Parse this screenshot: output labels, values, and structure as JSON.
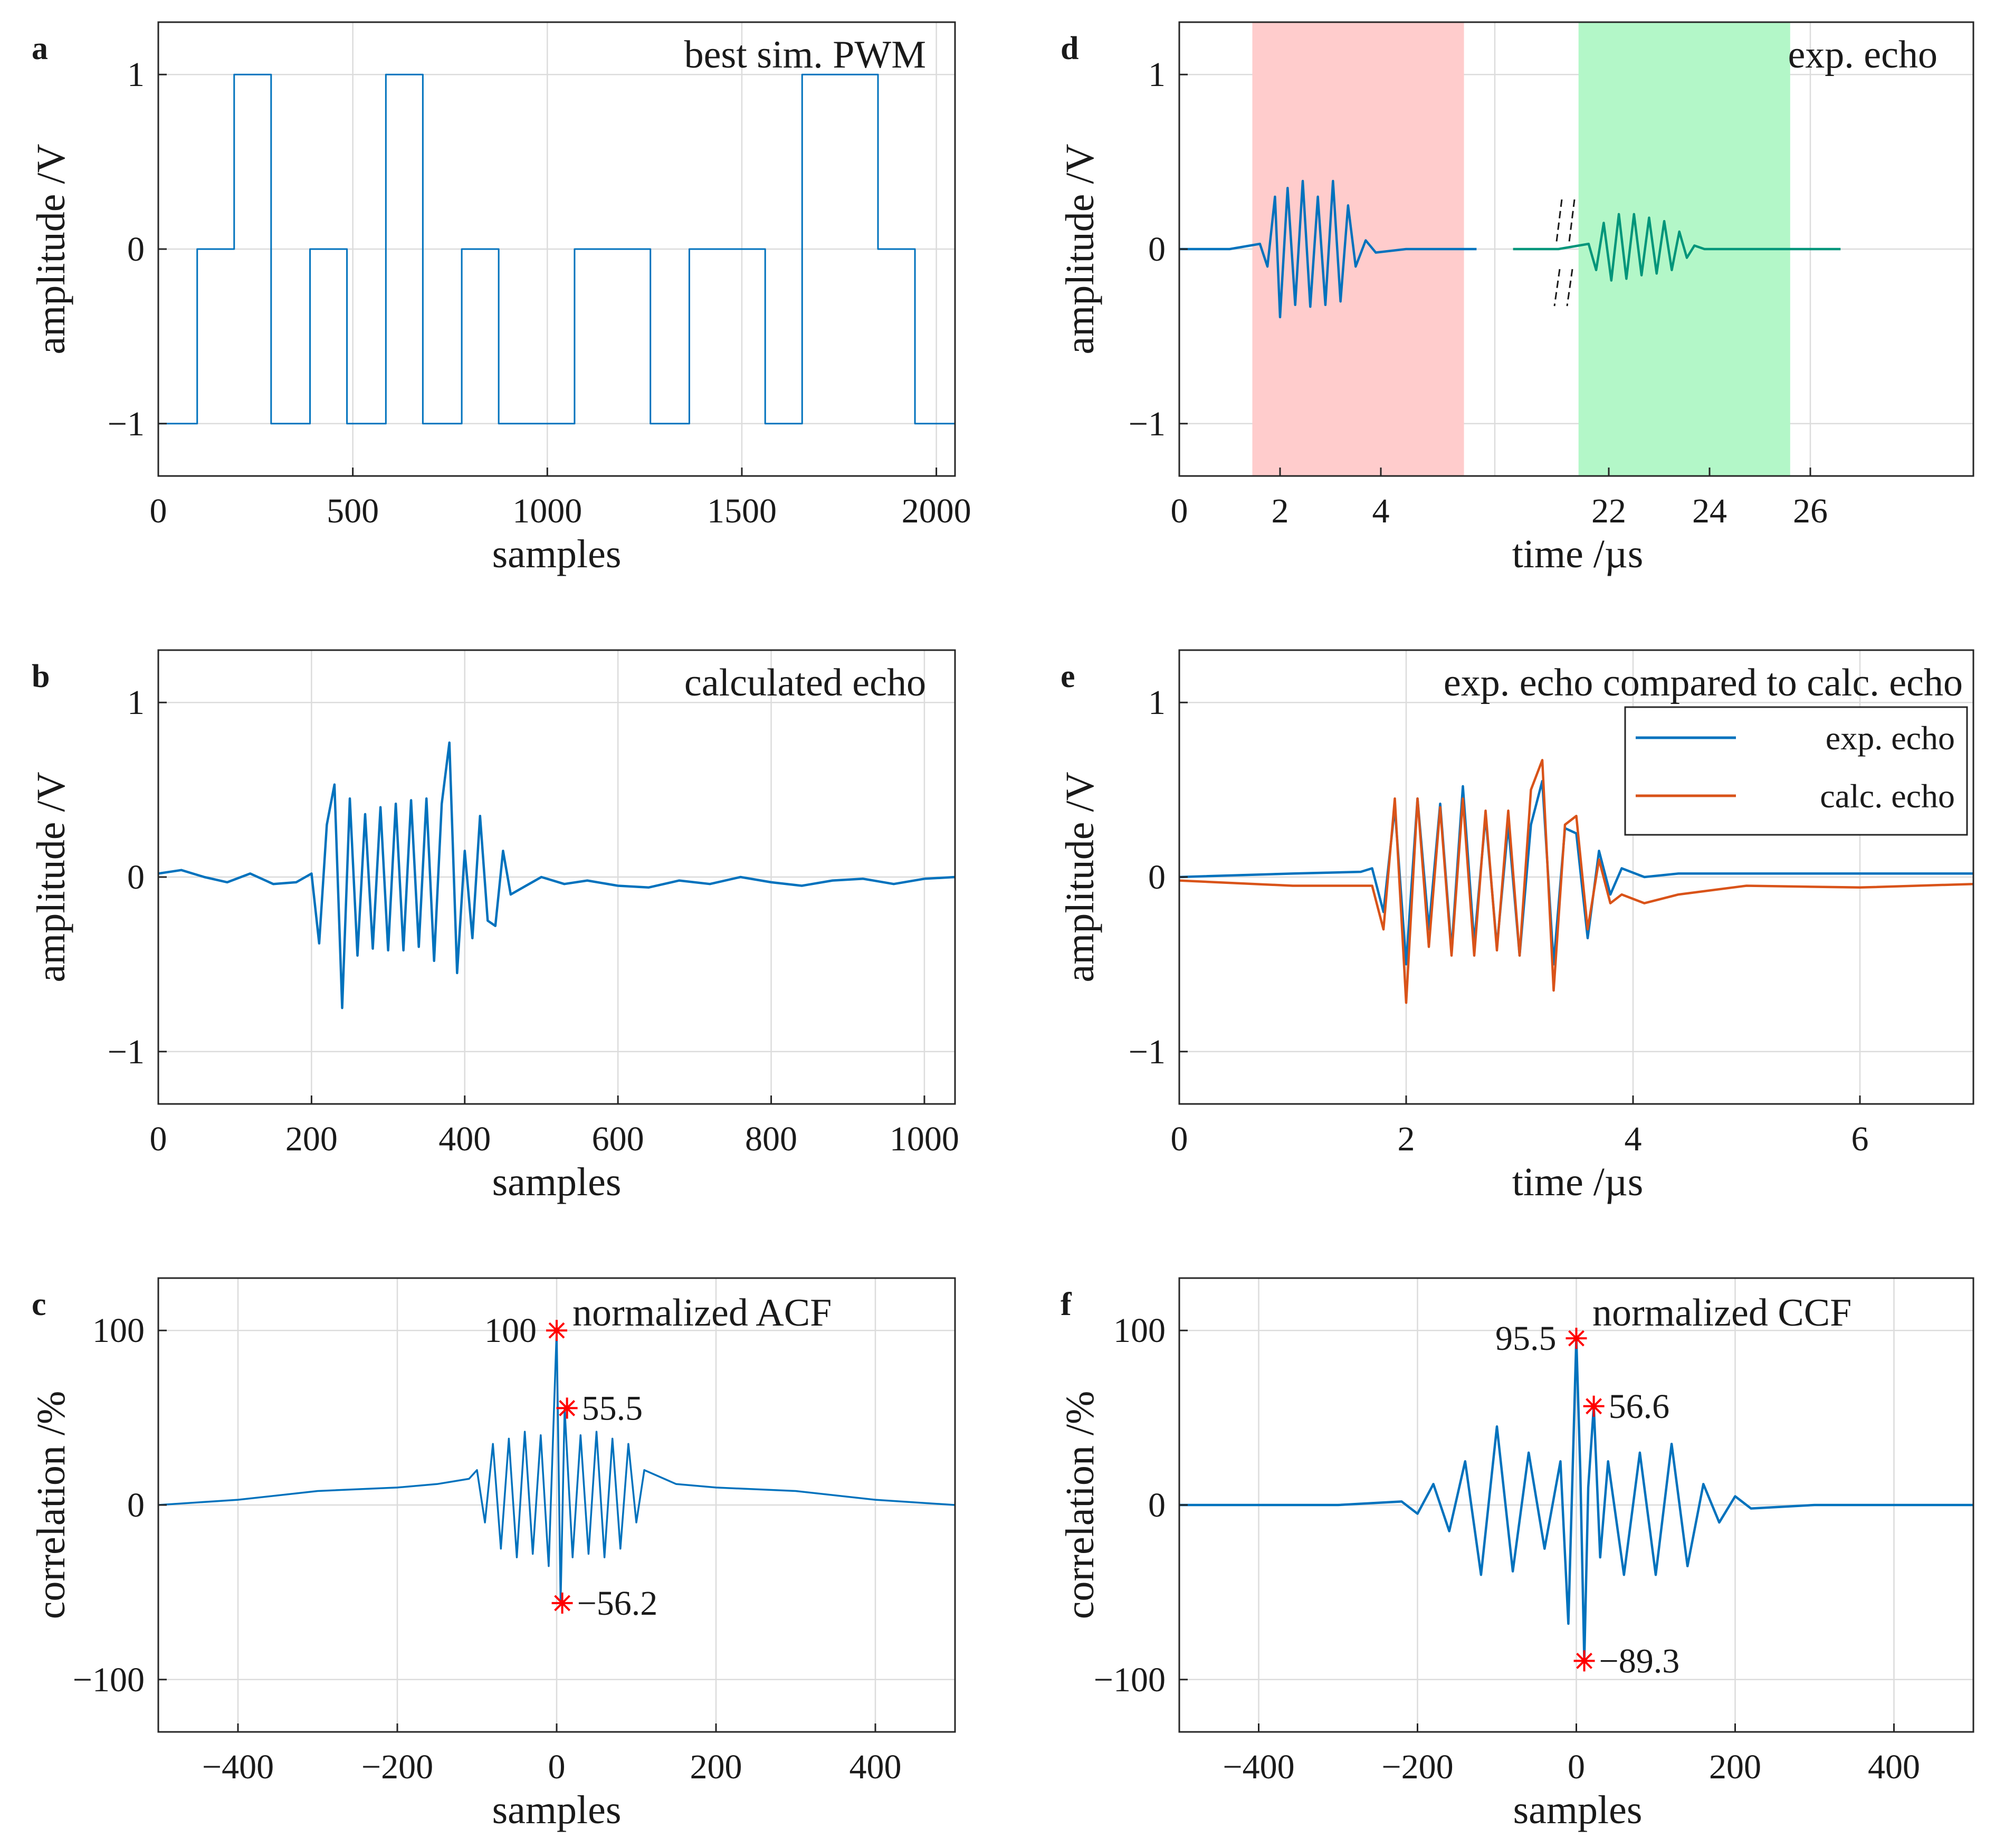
{
  "colors": {
    "blue": "#0072BD",
    "orange": "#D95319",
    "marker": "#ff0000",
    "red_band": "#ffcccc",
    "green_band": "#b3f7c8",
    "grid": "#dcdcdc",
    "axis": "#262626"
  },
  "chart_data": [
    {
      "id": "a",
      "type": "line",
      "panel_label": "a",
      "title": "best sim. PWM",
      "xlabel": "samples",
      "ylabel": "amplitude /V",
      "xlim": [
        0,
        2048
      ],
      "ylim": [
        -1.3,
        1.3
      ],
      "xticks": [
        0,
        500,
        1000,
        1500,
        2000
      ],
      "xtick_labels": [
        "0",
        "500",
        "1000",
        "1500",
        "2000"
      ],
      "yticks": [
        -1,
        0,
        1
      ],
      "ytick_labels": [
        "−1",
        "0",
        "1"
      ],
      "series": [
        {
          "name": "PWM",
          "style": "step",
          "x": [
            0,
            100,
            195,
            290,
            390,
            485,
            585,
            680,
            780,
            875,
            1070,
            1265,
            1365,
            1560,
            1655,
            1850,
            1945,
            2048
          ],
          "y": [
            -1,
            0,
            1,
            -1,
            0,
            -1,
            1,
            -1,
            0,
            -1,
            0,
            -1,
            0,
            -1,
            1,
            0,
            -1,
            -1
          ]
        }
      ]
    },
    {
      "id": "b",
      "type": "line",
      "panel_label": "b",
      "title": "calculated echo",
      "xlabel": "samples",
      "ylabel": "amplitude /V",
      "xlim": [
        0,
        1040
      ],
      "ylim": [
        -1.3,
        1.3
      ],
      "xticks": [
        0,
        200,
        400,
        600,
        800,
        1000
      ],
      "xtick_labels": [
        "0",
        "200",
        "400",
        "600",
        "800",
        "1000"
      ],
      "yticks": [
        -1,
        0,
        1
      ],
      "ytick_labels": [
        "−1",
        "0",
        "1"
      ],
      "series": [
        {
          "name": "calculated echo",
          "x": [
            0,
            30,
            60,
            90,
            120,
            150,
            180,
            200,
            210,
            220,
            230,
            240,
            250,
            260,
            270,
            280,
            290,
            300,
            310,
            320,
            330,
            340,
            350,
            360,
            370,
            380,
            390,
            400,
            410,
            420,
            430,
            440,
            450,
            460,
            480,
            500,
            530,
            560,
            600,
            640,
            680,
            720,
            760,
            800,
            840,
            880,
            920,
            960,
            1000,
            1040
          ],
          "y": [
            0.02,
            0.04,
            0.0,
            -0.03,
            0.02,
            -0.04,
            -0.03,
            0.02,
            -0.38,
            0.3,
            0.53,
            -0.75,
            0.45,
            -0.45,
            0.36,
            -0.41,
            0.4,
            -0.42,
            0.42,
            -0.42,
            0.44,
            -0.4,
            0.45,
            -0.48,
            0.42,
            0.77,
            -0.55,
            0.15,
            -0.35,
            0.35,
            -0.25,
            -0.28,
            0.15,
            -0.1,
            -0.05,
            0.0,
            -0.04,
            -0.02,
            -0.05,
            -0.06,
            -0.02,
            -0.04,
            0.0,
            -0.03,
            -0.05,
            -0.02,
            -0.01,
            -0.04,
            -0.01,
            0.0
          ]
        }
      ]
    },
    {
      "id": "c",
      "type": "line",
      "panel_label": "c",
      "title": "normalized ACF",
      "xlabel": "samples",
      "ylabel": "correlation /%",
      "xlim": [
        -500,
        500
      ],
      "ylim": [
        -130,
        130
      ],
      "xticks": [
        -400,
        -200,
        0,
        200,
        400
      ],
      "xtick_labels": [
        "−400",
        "−200",
        "0",
        "200",
        "400"
      ],
      "yticks": [
        -100,
        0,
        100
      ],
      "ytick_labels": [
        "−100",
        "0",
        "100"
      ],
      "series": [
        {
          "name": "ACF",
          "x": [
            -500,
            -400,
            -300,
            -200,
            -150,
            -110,
            -100,
            -90,
            -80,
            -70,
            -60,
            -50,
            -40,
            -30,
            -20,
            -10,
            0,
            5,
            10,
            20,
            30,
            40,
            50,
            60,
            70,
            80,
            90,
            100,
            110,
            150,
            200,
            300,
            400,
            500
          ],
          "y": [
            0,
            3,
            8,
            10,
            12,
            15,
            20,
            -10,
            35,
            -25,
            38,
            -30,
            42,
            -28,
            40,
            -35,
            100,
            -56.2,
            55.5,
            -30,
            40,
            -28,
            42,
            -30,
            38,
            -25,
            35,
            -10,
            20,
            12,
            10,
            8,
            3,
            0
          ]
        }
      ],
      "markers": [
        {
          "x": 0,
          "y": 100,
          "label": "100"
        },
        {
          "x": 13,
          "y": 55.5,
          "label": "55.5"
        },
        {
          "x": 7,
          "y": -56.2,
          "label": "−56.2"
        }
      ]
    },
    {
      "id": "d",
      "type": "line",
      "panel_label": "d",
      "title": "exp. echo",
      "xlabel": "time /µs",
      "ylabel": "amplitude /V",
      "ylim": [
        -1.3,
        1.3
      ],
      "xticks_display": [
        0,
        2,
        4,
        22,
        24,
        26
      ],
      "xtick_labels": [
        "0",
        "2",
        "4",
        "22",
        "24",
        "26"
      ],
      "yticks": [
        -1,
        0,
        1
      ],
      "ytick_labels": [
        "−1",
        "0",
        "1"
      ],
      "axis_break": "between 6 and 20 µs",
      "segments": [
        {
          "band_from": 1.45,
          "band_to": 5.65,
          "band_color": "red"
        },
        {
          "band_from": 21.4,
          "band_to": 25.6,
          "band_color": "green"
        }
      ],
      "series": [
        {
          "name": "exp. echo",
          "x": [
            0,
            1.0,
            1.6,
            1.75,
            1.9,
            2.0,
            2.15,
            2.3,
            2.45,
            2.6,
            2.75,
            2.9,
            3.05,
            3.2,
            3.35,
            3.5,
            3.7,
            3.9,
            4.5,
            5.5,
            5.9
          ],
          "y": [
            0.0,
            0.0,
            0.03,
            -0.1,
            0.3,
            -0.39,
            0.35,
            -0.32,
            0.39,
            -0.33,
            0.3,
            -0.32,
            0.39,
            -0.3,
            0.25,
            -0.1,
            0.05,
            -0.02,
            0.0,
            0.0,
            0.0
          ]
        },
        {
          "name": "exp. echo (late)",
          "x": [
            20.1,
            21.0,
            21.6,
            21.75,
            21.9,
            22.05,
            22.2,
            22.35,
            22.5,
            22.65,
            22.8,
            22.95,
            23.1,
            23.25,
            23.4,
            23.55,
            23.7,
            23.9,
            24.5,
            25.5,
            26.6
          ],
          "y": [
            0.0,
            0.0,
            0.03,
            -0.12,
            0.15,
            -0.18,
            0.2,
            -0.17,
            0.2,
            -0.15,
            0.18,
            -0.14,
            0.16,
            -0.12,
            0.1,
            -0.05,
            0.02,
            0.0,
            0.0,
            0.0,
            0.0
          ]
        }
      ]
    },
    {
      "id": "e",
      "type": "line",
      "panel_label": "e",
      "title": "exp. echo compared to calc. echo",
      "xlabel": "time /µs",
      "ylabel": "amplitude /V",
      "xlim": [
        0,
        7
      ],
      "ylim": [
        -1.3,
        1.3
      ],
      "xticks": [
        0,
        2,
        4,
        6
      ],
      "xtick_labels": [
        "0",
        "2",
        "4",
        "6"
      ],
      "yticks": [
        -1,
        0,
        1
      ],
      "ytick_labels": [
        "−1",
        "0",
        "1"
      ],
      "legend": {
        "position": "top-right",
        "entries": [
          "exp. echo",
          "calc. echo"
        ]
      },
      "series": [
        {
          "name": "exp. echo",
          "x": [
            0,
            1.0,
            1.6,
            1.7,
            1.8,
            1.9,
            2.0,
            2.1,
            2.2,
            2.3,
            2.4,
            2.5,
            2.6,
            2.7,
            2.8,
            2.9,
            3.0,
            3.1,
            3.2,
            3.3,
            3.4,
            3.5,
            3.6,
            3.7,
            3.8,
            3.9,
            4.1,
            4.4,
            5.0,
            6.0,
            7.0
          ],
          "y": [
            0.0,
            0.02,
            0.03,
            0.05,
            -0.2,
            0.4,
            -0.5,
            0.45,
            -0.3,
            0.42,
            -0.42,
            0.52,
            -0.38,
            0.35,
            -0.4,
            0.3,
            -0.45,
            0.3,
            0.55,
            -0.5,
            0.28,
            0.25,
            -0.35,
            0.15,
            -0.1,
            0.05,
            0.0,
            0.02,
            0.02,
            0.02,
            0.02
          ]
        },
        {
          "name": "calc. echo",
          "x": [
            0,
            1.0,
            1.6,
            1.7,
            1.8,
            1.9,
            2.0,
            2.1,
            2.2,
            2.3,
            2.4,
            2.5,
            2.6,
            2.7,
            2.8,
            2.9,
            3.0,
            3.1,
            3.2,
            3.3,
            3.4,
            3.5,
            3.6,
            3.7,
            3.8,
            3.9,
            4.1,
            4.4,
            5.0,
            6.0,
            7.0
          ],
          "y": [
            -0.02,
            -0.05,
            -0.05,
            -0.05,
            -0.3,
            0.45,
            -0.72,
            0.45,
            -0.4,
            0.4,
            -0.45,
            0.45,
            -0.45,
            0.38,
            -0.42,
            0.38,
            -0.45,
            0.5,
            0.67,
            -0.65,
            0.3,
            0.35,
            -0.3,
            0.1,
            -0.15,
            -0.1,
            -0.15,
            -0.1,
            -0.05,
            -0.06,
            -0.04
          ]
        }
      ]
    },
    {
      "id": "f",
      "type": "line",
      "panel_label": "f",
      "title": "normalized CCF",
      "xlabel": "samples",
      "ylabel": "correlation /%",
      "xlim": [
        -500,
        500
      ],
      "ylim": [
        -130,
        130
      ],
      "xticks": [
        -400,
        -200,
        0,
        200,
        400
      ],
      "xtick_labels": [
        "−400",
        "−200",
        "0",
        "200",
        "400"
      ],
      "yticks": [
        -100,
        0,
        100
      ],
      "ytick_labels": [
        "−100",
        "0",
        "100"
      ],
      "series": [
        {
          "name": "CCF",
          "x": [
            -500,
            -300,
            -220,
            -200,
            -180,
            -160,
            -140,
            -120,
            -100,
            -80,
            -60,
            -40,
            -20,
            -10,
            0,
            5,
            10,
            15,
            22,
            30,
            40,
            60,
            80,
            100,
            120,
            140,
            160,
            180,
            200,
            220,
            300,
            500
          ],
          "y": [
            0,
            0,
            2,
            -5,
            12,
            -15,
            25,
            -40,
            45,
            -38,
            30,
            -25,
            25,
            -68,
            95.5,
            20,
            -89.3,
            10,
            56.6,
            -30,
            25,
            -40,
            30,
            -40,
            35,
            -35,
            12,
            -10,
            5,
            -2,
            0,
            0
          ]
        }
      ],
      "markers": [
        {
          "x": 0,
          "y": 95.5,
          "label": "95.5"
        },
        {
          "x": 22,
          "y": 56.6,
          "label": "56.6"
        },
        {
          "x": 10,
          "y": -89.3,
          "label": "−89.3"
        }
      ]
    }
  ]
}
